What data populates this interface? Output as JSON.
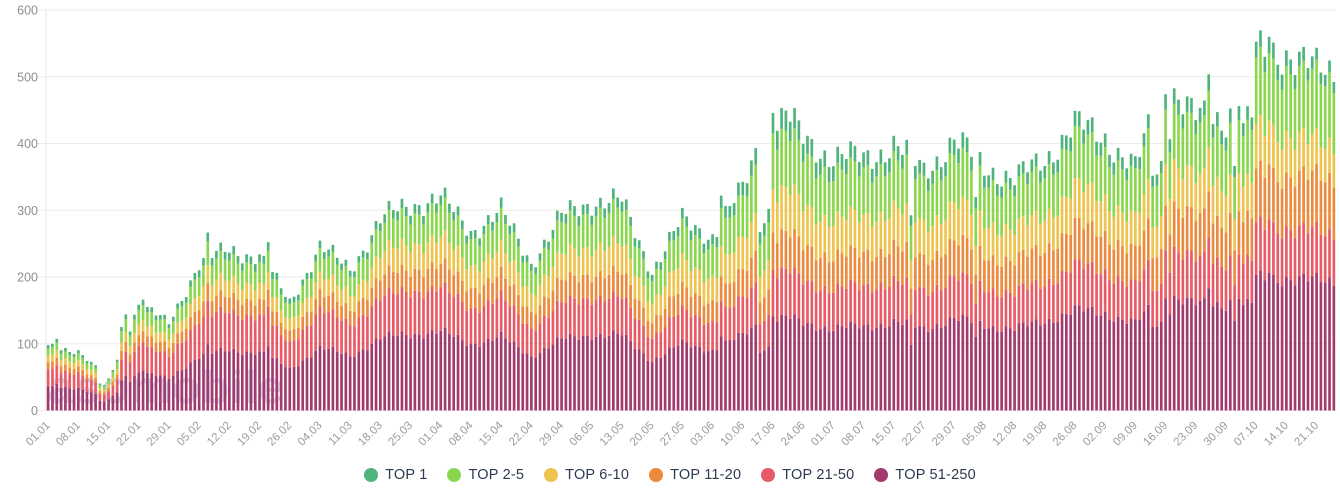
{
  "watermark": {
    "text": "asomobile",
    "color": "#a9b7dd",
    "opacity": 0.5
  },
  "axes": {
    "y_tick_color": "#8f8f8f",
    "x_tick_color": "#9b9b9b",
    "grid_color": "#ebebeb",
    "axis_line_color": "#e4e4e4"
  },
  "legend": [
    {
      "label": "TOP 1",
      "color": "#4eb47b"
    },
    {
      "label": "TOP 2-5",
      "color": "#8ad64d"
    },
    {
      "label": "TOP 6-10",
      "color": "#eec34e"
    },
    {
      "label": "TOP 11-20",
      "color": "#ec8a3e"
    },
    {
      "label": "TOP 21-50",
      "color": "#e85a66"
    },
    {
      "label": "TOP 51-250",
      "color": "#a23a6d"
    }
  ],
  "chart_data": {
    "type": "bar",
    "stacked": true,
    "title": "",
    "xlabel": "",
    "ylabel": "",
    "ylim": [
      0,
      600
    ],
    "y_ticks": [
      0,
      100,
      200,
      300,
      400,
      500,
      600
    ],
    "grid": true,
    "legend_position": "bottom-center",
    "x_labels": [
      "01.01",
      "08.01",
      "15.01",
      "22.01",
      "29.01",
      "05.02",
      "12.02",
      "19.02",
      "26.02",
      "04.03",
      "11.03",
      "18.03",
      "25.03",
      "01.04",
      "08.04",
      "15.04",
      "22.04",
      "29.04",
      "06.05",
      "13.05",
      "20.05",
      "27.05",
      "03.06",
      "10.06",
      "17.06",
      "24.06",
      "01.07",
      "08.07",
      "15.07",
      "22.07",
      "29.07",
      "05.08",
      "12.08",
      "19.08",
      "26.08",
      "02.09",
      "09.09",
      "16.09",
      "23.09",
      "30.09",
      "07.10",
      "14.10",
      "21.10"
    ],
    "days_per_label": 7,
    "extra_days": 4,
    "series": [
      {
        "name": "TOP 51-250",
        "color": "#a23a6d",
        "values": [
          35,
          34,
          16,
          58,
          48,
          82,
          90,
          88,
          62,
          94,
          82,
          108,
          115,
          118,
          100,
          110,
          82,
          106,
          114,
          112,
          75,
          100,
          91,
          112,
          148,
          130,
          124,
          125,
          133,
          122,
          138,
          128,
          122,
          134,
          150,
          146,
          130,
          176,
          158,
          160,
          196,
          200,
          193
        ]
      },
      {
        "name": "TOP 21-50",
        "color": "#e85a66",
        "values": [
          25,
          23,
          11,
          40,
          33,
          55,
          58,
          55,
          38,
          56,
          47,
          60,
          65,
          64,
          54,
          58,
          42,
          53,
          57,
          55,
          36,
          48,
          43,
          53,
          73,
          63,
          59,
          59,
          62,
          56,
          62,
          57,
          53,
          58,
          66,
          63,
          55,
          76,
          66,
          65,
          76,
          77,
          71
        ]
      },
      {
        "name": "TOP 11-20",
        "color": "#ec8a3e",
        "values": [
          10,
          9,
          5,
          16,
          13,
          22,
          24,
          23,
          16,
          25,
          22,
          30,
          33,
          35,
          30,
          33,
          25,
          33,
          36,
          36,
          24,
          33,
          30,
          39,
          59,
          52,
          49,
          49,
          52,
          48,
          54,
          50,
          47,
          52,
          59,
          57,
          50,
          70,
          61,
          61,
          78,
          80,
          81
        ]
      },
      {
        "name": "TOP 6-10",
        "color": "#eec34e",
        "values": [
          10,
          9,
          5,
          16,
          13,
          22,
          25,
          24,
          17,
          26,
          23,
          34,
          38,
          40,
          34,
          38,
          29,
          38,
          42,
          42,
          29,
          40,
          37,
          47,
          68,
          60,
          55,
          54,
          57,
          51,
          56,
          50,
          47,
          50,
          57,
          54,
          48,
          65,
          57,
          57,
          64,
          62,
          51
        ]
      },
      {
        "name": "TOP 2-5",
        "color": "#8ad64d",
        "values": [
          10,
          10,
          6,
          22,
          17,
          30,
          31,
          30,
          21,
          33,
          29,
          41,
          45,
          47,
          40,
          45,
          34,
          46,
          51,
          52,
          36,
          49,
          46,
          60,
          88,
          76,
          70,
          69,
          72,
          64,
          71,
          64,
          59,
          65,
          74,
          70,
          62,
          86,
          74,
          74,
          96,
          97,
          95
        ]
      },
      {
        "name": "TOP 1",
        "color": "#4eb47b",
        "values": [
          5,
          5,
          2,
          8,
          6,
          11,
          12,
          12,
          8,
          11,
          9,
          12,
          14,
          14,
          12,
          14,
          10,
          14,
          15,
          15,
          10,
          15,
          15,
          19,
          32,
          27,
          23,
          22,
          22,
          19,
          23,
          19,
          17,
          19,
          22,
          20,
          17,
          24,
          21,
          21,
          23,
          24,
          17
        ]
      }
    ],
    "daily_overrides": {
      "2": 1.17,
      "12": 0.7,
      "13": 0.72,
      "17": 1.3,
      "18": 1.35,
      "22": 1.12,
      "37": 1.12,
      "51": 1.2,
      "156": 1.17,
      "165": 0.7,
      "166": 0.68,
      "167": 0.67,
      "169": 0.94,
      "170": 0.96,
      "200": 0.74,
      "215": 0.82,
      "256": 0.82,
      "257": 0.79,
      "258": 0.77,
      "260": 0.89,
      "269": 1.17,
      "275": 0.8,
      "277": 0.85,
      "278": 0.86,
      "279": 0.85,
      "283": 1.06
    },
    "jitter": {
      "amp1": 0.04,
      "f1": 1.93,
      "amp2": 0.035,
      "f2": 0.47,
      "phase2": 2.0
    }
  }
}
